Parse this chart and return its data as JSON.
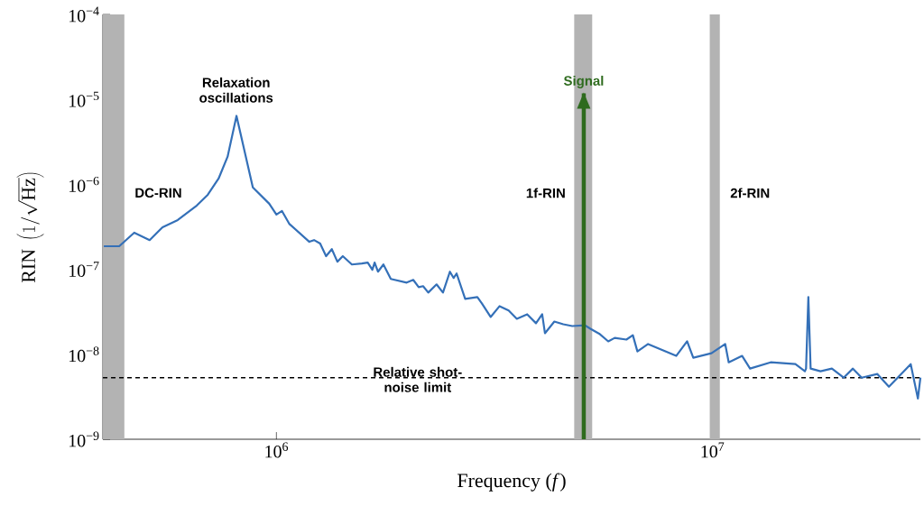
{
  "chart_data": {
    "type": "line",
    "xlabel": "Frequency (*f*)",
    "ylabel": "\\mathrm{RIN}\\;\\left(1/\\sqrt{\\mathrm{Hz}}\\right)",
    "log": "xy",
    "grid": false,
    "marker": "none",
    "line_style": "solid",
    "xlim": [
      400000,
      30000000
    ],
    "ylim": [
      1e-09,
      0.0001
    ],
    "xticks": [
      {
        "value": 1000000,
        "label": "10$^{6}$"
      },
      {
        "value": 10000000,
        "label": "10$^{7}$"
      }
    ],
    "yticks": [
      {
        "value": 1e-09,
        "label": "10$^{−9}$"
      },
      {
        "value": 1e-08,
        "label": "10$^{−8}$"
      },
      {
        "value": 1e-07,
        "label": "10$^{−7}$"
      },
      {
        "value": 1e-06,
        "label": "10$^{−6}$"
      },
      {
        "value": 1e-05,
        "label": "10$^{−5}$"
      },
      {
        "value": 0.0001,
        "label": "10$^{−4}$"
      }
    ],
    "series": [
      {
        "color": "#3470b8",
        "x": [
          402000,
          436000,
          472000,
          512000,
          548000,
          594000,
          657000,
          696000,
          737000,
          773000,
          810000,
          883000,
          963000,
          1000000,
          1030000,
          1070000,
          1190000,
          1220000,
          1260000,
          1300000,
          1340000,
          1380000,
          1420000,
          1490000,
          1570000,
          1620000,
          1660000,
          1680000,
          1710000,
          1760000,
          1830000,
          1990000,
          2060000,
          2120000,
          2170000,
          2230000,
          2330000,
          2410000,
          2500000,
          2550000,
          2590000,
          2710000,
          2890000,
          2960000,
          3100000,
          3250000,
          3410000,
          3560000,
          3760000,
          3940000,
          4070000,
          4130000,
          4340000,
          4550000,
          4770000,
          5100000,
          5250000,
          5500000,
          5770000,
          5970000,
          6350000,
          6570000,
          6730000,
          7120000,
          8260000,
          8750000,
          9040000,
          9950000,
          10700000,
          10900000,
          11700000,
          12200000,
          13600000,
          15500000,
          16300000,
          16400000,
          16600000,
          16800000,
          17700000,
          18800000,
          20000000,
          21000000,
          22000000,
          23900000,
          25400000,
          26600000,
          28500000,
          29600000,
          30000000
        ],
        "values": [
          1.87e-07,
          1.87e-07,
          2.7e-07,
          2.21e-07,
          3.13e-07,
          3.8e-07,
          5.64e-07,
          7.55e-07,
          1.17e-06,
          2.12e-06,
          6.4e-06,
          9.2e-07,
          5.92e-07,
          4.41e-07,
          4.86e-07,
          3.44e-07,
          2.11e-07,
          2.21e-07,
          2.01e-07,
          1.43e-07,
          1.73e-07,
          1.23e-07,
          1.43e-07,
          1.14e-07,
          1.17e-07,
          1.2e-07,
          9.86e-08,
          1.2e-07,
          9.38e-08,
          1.14e-07,
          7.71e-08,
          6.98e-08,
          7.52e-08,
          6.18e-08,
          6.34e-08,
          5.33e-08,
          6.65e-08,
          5.33e-08,
          9.38e-08,
          7.91e-08,
          8.93e-08,
          4.49e-08,
          4.72e-08,
          3.97e-08,
          2.75e-08,
          3.69e-08,
          3.27e-08,
          2.62e-08,
          2.96e-08,
          2.32e-08,
          2.96e-08,
          1.77e-08,
          2.43e-08,
          2.26e-08,
          2.15e-08,
          2.2e-08,
          2e-08,
          1.75e-08,
          1.42e-08,
          1.56e-08,
          1.49e-08,
          1.68e-08,
          1.08e-08,
          1.32e-08,
          9.57e-09,
          1.42e-08,
          9.1e-09,
          1.03e-08,
          1.32e-08,
          8.05e-09,
          9.57e-09,
          6.79e-09,
          8.05e-09,
          7.67e-09,
          6.31e-09,
          6.79e-09,
          4.72e-08,
          6.79e-09,
          6.31e-09,
          6.79e-09,
          5.31e-09,
          6.79e-09,
          5.31e-09,
          5.86e-09,
          4.15e-09,
          5.31e-09,
          7.67e-09,
          3.02e-09,
          5.31e-09
        ]
      },
      {
        "name": "Signal",
        "color": "#2e6b1e",
        "x": [
          5070000,
          5070000
        ],
        "values": [
          1e-09,
          1.18e-05
        ]
      }
    ],
    "bands": [
      {
        "axis": "x",
        "from": 400000,
        "to": 448000,
        "label": "DC-RIN",
        "color": "#b3b3b3"
      },
      {
        "axis": "x",
        "from": 4820000,
        "to": 5300000,
        "label": "1f-RIN",
        "color": "#b3b3b3"
      },
      {
        "axis": "x",
        "from": 9860000,
        "to": 10400000,
        "label": "2f-RIN",
        "color": "#b3b3b3"
      }
    ],
    "ref_lines": [
      {
        "axis": "y",
        "value": 5.3e-09,
        "label": "Relative shot-noise limit",
        "color": "#000000",
        "line_style": "dashed"
      }
    ],
    "annotations": [
      "Relaxation oscillations"
    ]
  }
}
